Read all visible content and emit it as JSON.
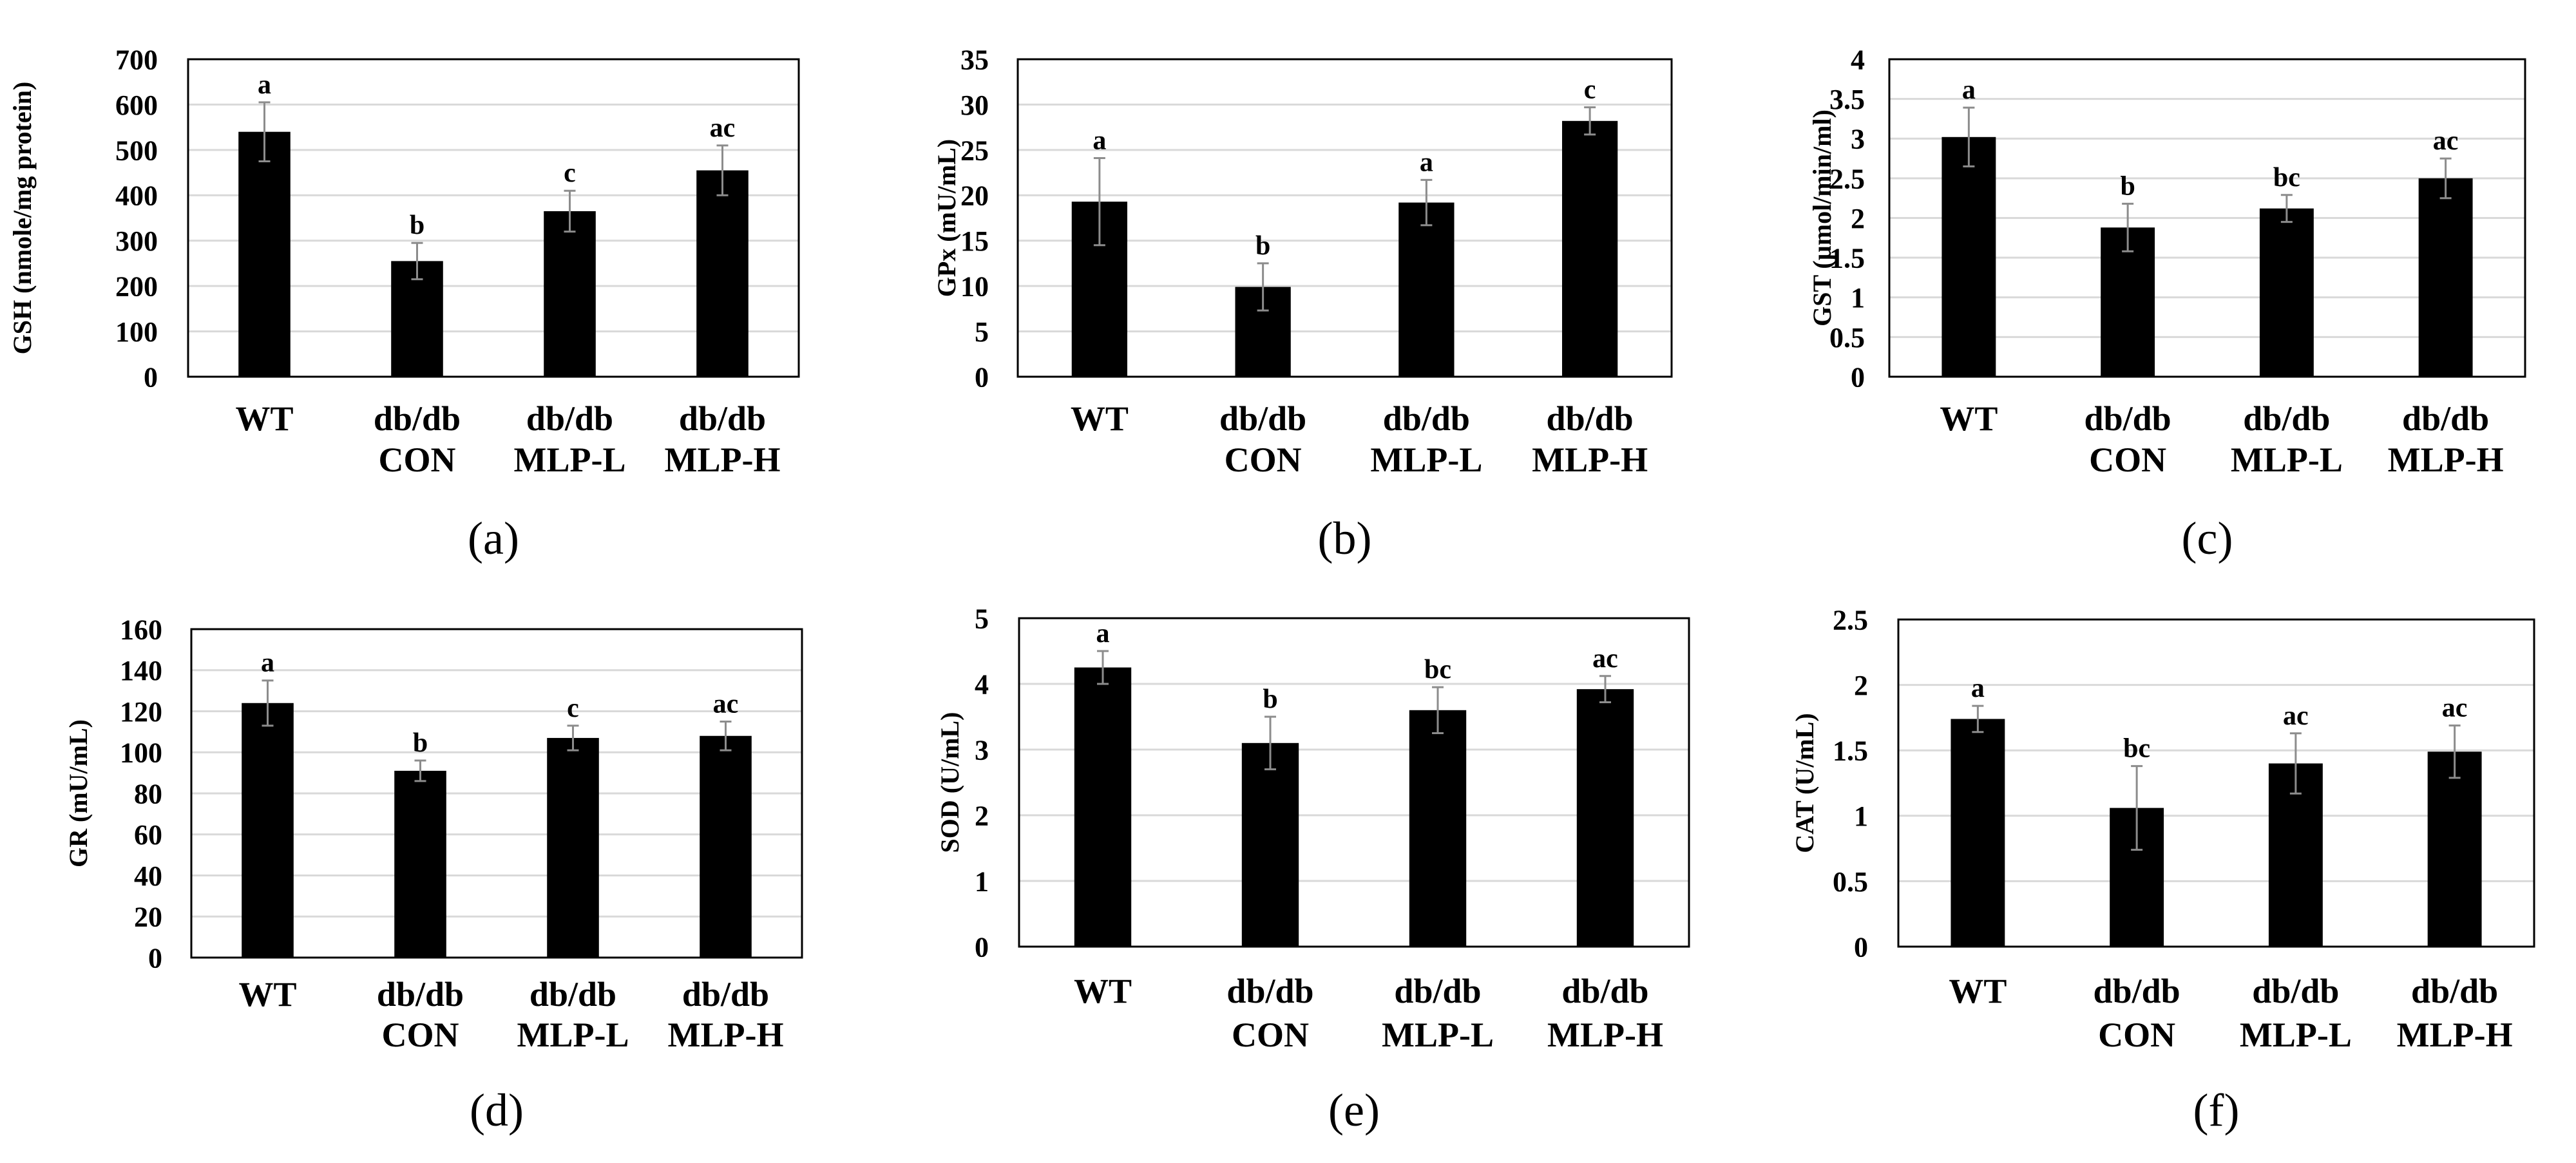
{
  "colors": {
    "bar": "#000000",
    "grid": "#d9d9d9",
    "frame": "#000000",
    "error": "#8c8c8c",
    "background": "#ffffff"
  },
  "chart_data": [
    {
      "type": "bar",
      "panel": "(a)",
      "categories": [
        [
          "WT"
        ],
        [
          "db/db",
          "CON"
        ],
        [
          "db/db",
          "MLP-L"
        ],
        [
          "db/db",
          "MLP-H"
        ]
      ],
      "values": [
        540,
        255,
        365,
        455
      ],
      "errors": [
        65,
        40,
        45,
        55
      ],
      "significance": [
        "a",
        "b",
        "c",
        "ac"
      ],
      "ylabel": "GSH (nmole/mg protein)",
      "ylim": [
        0,
        700
      ],
      "yticks": [
        "0",
        "100",
        "200",
        "300",
        "400",
        "500",
        "600",
        "700"
      ],
      "grid": true
    },
    {
      "type": "bar",
      "panel": "(b)",
      "categories": [
        [
          "WT"
        ],
        [
          "db/db",
          "CON"
        ],
        [
          "db/db",
          "MLP-L"
        ],
        [
          "db/db",
          "MLP-H"
        ]
      ],
      "values": [
        19.3,
        9.9,
        19.2,
        28.2
      ],
      "errors": [
        4.8,
        2.6,
        2.5,
        1.5
      ],
      "significance": [
        "a",
        "b",
        "a",
        "c"
      ],
      "ylabel": "GPx (mU/mL)",
      "ylim": [
        0,
        35
      ],
      "yticks": [
        "0",
        "5",
        "10",
        "15",
        "20",
        "25",
        "30",
        "35"
      ],
      "grid": true
    },
    {
      "type": "bar",
      "panel": "(c)",
      "categories": [
        [
          "WT"
        ],
        [
          "db/db",
          "CON"
        ],
        [
          "db/db",
          "MLP-L"
        ],
        [
          "db/db",
          "MLP-H"
        ]
      ],
      "values": [
        3.02,
        1.88,
        2.12,
        2.5
      ],
      "errors": [
        0.37,
        0.3,
        0.17,
        0.25
      ],
      "significance": [
        "a",
        "b",
        "bc",
        "ac"
      ],
      "ylabel": "GST (µmol/min/ml)",
      "ylim": [
        0,
        4
      ],
      "yticks": [
        "0",
        "0.5",
        "1",
        "1.5",
        "2",
        "2.5",
        "3",
        "3.5",
        "4"
      ],
      "grid": true
    },
    {
      "type": "bar",
      "panel": "(d)",
      "categories": [
        [
          "WT"
        ],
        [
          "db/db",
          "CON"
        ],
        [
          "db/db",
          "MLP-L"
        ],
        [
          "db/db",
          "MLP-H"
        ]
      ],
      "values": [
        124,
        91,
        107,
        108
      ],
      "errors": [
        11,
        5,
        6,
        7
      ],
      "significance": [
        "a",
        "b",
        "c",
        "ac"
      ],
      "ylabel": "GR (mU/mL)",
      "ylim": [
        0,
        160
      ],
      "yticks": [
        "0",
        "20",
        "40",
        "60",
        "80",
        "100",
        "120",
        "140",
        "160"
      ],
      "grid": true
    },
    {
      "type": "bar",
      "panel": "(e)",
      "categories": [
        [
          "WT"
        ],
        [
          "db/db",
          "CON"
        ],
        [
          "db/db",
          "MLP-L"
        ],
        [
          "db/db",
          "MLP-H"
        ]
      ],
      "values": [
        4.25,
        3.1,
        3.6,
        3.92
      ],
      "errors": [
        0.25,
        0.4,
        0.35,
        0.2
      ],
      "significance": [
        "a",
        "b",
        "bc",
        "ac"
      ],
      "ylabel": "SOD (U/mL)",
      "ylim": [
        0,
        5
      ],
      "yticks": [
        "0",
        "1",
        "2",
        "3",
        "4",
        "5"
      ],
      "grid": true
    },
    {
      "type": "bar",
      "panel": "(f)",
      "categories": [
        [
          "WT"
        ],
        [
          "db/db",
          "CON"
        ],
        [
          "db/db",
          "MLP-L"
        ],
        [
          "db/db",
          "MLP-H"
        ]
      ],
      "values": [
        1.74,
        1.06,
        1.4,
        1.49
      ],
      "errors": [
        0.1,
        0.32,
        0.23,
        0.2
      ],
      "significance": [
        "a",
        "bc",
        "ac",
        "ac"
      ],
      "ylabel": "CAT (U/mL)",
      "ylim": [
        0,
        2.5
      ],
      "yticks": [
        "0",
        "0.5",
        "1",
        "1.5",
        "2",
        "2.5"
      ],
      "grid": true
    }
  ]
}
